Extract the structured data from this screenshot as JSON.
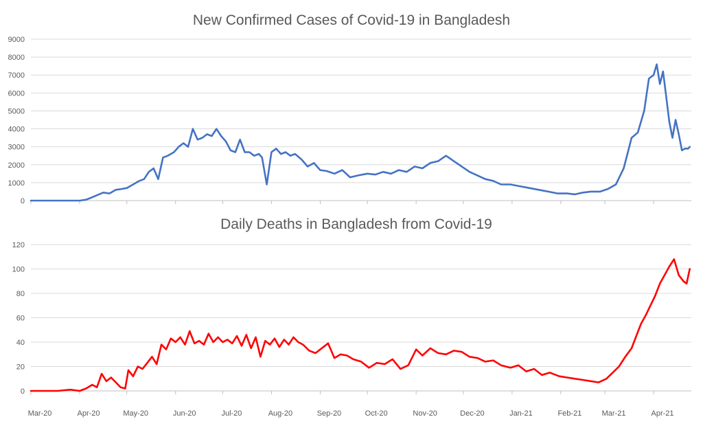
{
  "chart_data": [
    {
      "type": "line",
      "title": "New Confirmed Cases of Covid-19 in Bangladesh",
      "xlabel": "",
      "ylabel": "",
      "ylim": [
        0,
        9000
      ],
      "yticks": [
        0,
        1000,
        2000,
        3000,
        4000,
        5000,
        6000,
        7000,
        8000,
        9000
      ],
      "grid": true,
      "color": "#4472c4",
      "series": [
        {
          "x": [
            "2020-03-01",
            "2020-03-24",
            "2020-03-28",
            "2020-04-01",
            "2020-04-05",
            "2020-04-08",
            "2020-04-12",
            "2020-04-16",
            "2020-04-20",
            "2020-04-24",
            "2020-04-28",
            "2020-05-01",
            "2020-05-05",
            "2020-05-09",
            "2020-05-12",
            "2020-05-15",
            "2020-05-18",
            "2020-05-21",
            "2020-05-24",
            "2020-05-27",
            "2020-05-31",
            "2020-06-03",
            "2020-06-06",
            "2020-06-09",
            "2020-06-12",
            "2020-06-15",
            "2020-06-18",
            "2020-06-21",
            "2020-06-24",
            "2020-06-27",
            "2020-06-30",
            "2020-07-03",
            "2020-07-06",
            "2020-07-09",
            "2020-07-12",
            "2020-07-15",
            "2020-07-18",
            "2020-07-21",
            "2020-07-24",
            "2020-07-26",
            "2020-07-29",
            "2020-08-01",
            "2020-08-04",
            "2020-08-07",
            "2020-08-10",
            "2020-08-13",
            "2020-08-16",
            "2020-08-20",
            "2020-08-24",
            "2020-08-28",
            "2020-09-01",
            "2020-09-05",
            "2020-09-10",
            "2020-09-15",
            "2020-09-20",
            "2020-09-25",
            "2020-10-01",
            "2020-10-06",
            "2020-10-11",
            "2020-10-16",
            "2020-10-21",
            "2020-10-26",
            "2020-10-31",
            "2020-11-05",
            "2020-11-10",
            "2020-11-15",
            "2020-11-20",
            "2020-11-25",
            "2020-11-30",
            "2020-12-05",
            "2020-12-10",
            "2020-12-15",
            "2020-12-20",
            "2020-12-25",
            "2020-12-31",
            "2021-01-06",
            "2021-01-12",
            "2021-01-18",
            "2021-01-24",
            "2021-01-30",
            "2021-02-05",
            "2021-02-10",
            "2021-02-15",
            "2021-02-20",
            "2021-02-26",
            "2021-03-03",
            "2021-03-08",
            "2021-03-13",
            "2021-03-18",
            "2021-03-22",
            "2021-03-26",
            "2021-03-29",
            "2021-04-01",
            "2021-04-03",
            "2021-04-05",
            "2021-04-07",
            "2021-04-09",
            "2021-04-11",
            "2021-04-13",
            "2021-04-15",
            "2021-04-17",
            "2021-04-19",
            "2021-04-21",
            "2021-04-23",
            "2021-04-24"
          ],
          "y": [
            0,
            0,
            0,
            0,
            50,
            150,
            300,
            450,
            400,
            600,
            650,
            700,
            900,
            1100,
            1200,
            1600,
            1800,
            1200,
            2400,
            2500,
            2700,
            3000,
            3200,
            3000,
            4000,
            3400,
            3500,
            3700,
            3600,
            4000,
            3600,
            3300,
            2800,
            2700,
            3400,
            2700,
            2700,
            2500,
            2600,
            2400,
            900,
            2700,
            2900,
            2600,
            2700,
            2500,
            2600,
            2300,
            1900,
            2100,
            1700,
            1650,
            1500,
            1700,
            1300,
            1400,
            1500,
            1450,
            1600,
            1500,
            1700,
            1600,
            1900,
            1800,
            2100,
            2200,
            2500,
            2200,
            1900,
            1600,
            1400,
            1200,
            1100,
            900,
            900,
            800,
            700,
            600,
            500,
            400,
            400,
            350,
            450,
            500,
            500,
            650,
            900,
            1800,
            3500,
            3800,
            5000,
            6800,
            7000,
            7600,
            6500,
            7200,
            5800,
            4400,
            3500,
            4500,
            3700,
            2800,
            2900,
            2900,
            3000
          ]
        }
      ]
    },
    {
      "type": "line",
      "title": "Daily Deaths in Bangladesh from Covid-19",
      "xlabel": "",
      "ylabel": "",
      "ylim": [
        0,
        120
      ],
      "yticks": [
        0,
        20,
        40,
        60,
        80,
        100,
        120
      ],
      "grid": true,
      "color": "#ff0000",
      "x_tick_labels": [
        "Mar-20",
        "Apr-20",
        "May-20",
        "Jun-20",
        "Jul-20",
        "Aug-20",
        "Sep-20",
        "Oct-20",
        "Nov-20",
        "Dec-20",
        "Jan-21",
        "Feb-21",
        "Mar-21",
        "Apr-21"
      ],
      "series": [
        {
          "x": [
            "2020-03-01",
            "2020-03-18",
            "2020-03-26",
            "2020-04-01",
            "2020-04-05",
            "2020-04-09",
            "2020-04-12",
            "2020-04-15",
            "2020-04-18",
            "2020-04-21",
            "2020-04-24",
            "2020-04-27",
            "2020-04-30",
            "2020-05-02",
            "2020-05-05",
            "2020-05-08",
            "2020-05-11",
            "2020-05-14",
            "2020-05-17",
            "2020-05-20",
            "2020-05-23",
            "2020-05-26",
            "2020-05-29",
            "2020-06-01",
            "2020-06-04",
            "2020-06-07",
            "2020-06-10",
            "2020-06-13",
            "2020-06-16",
            "2020-06-19",
            "2020-06-22",
            "2020-06-25",
            "2020-06-28",
            "2020-07-01",
            "2020-07-04",
            "2020-07-07",
            "2020-07-10",
            "2020-07-13",
            "2020-07-16",
            "2020-07-19",
            "2020-07-22",
            "2020-07-25",
            "2020-07-28",
            "2020-07-31",
            "2020-08-03",
            "2020-08-06",
            "2020-08-09",
            "2020-08-12",
            "2020-08-15",
            "2020-08-18",
            "2020-08-21",
            "2020-08-25",
            "2020-08-29",
            "2020-09-02",
            "2020-09-06",
            "2020-09-10",
            "2020-09-14",
            "2020-09-18",
            "2020-09-22",
            "2020-09-27",
            "2020-10-02",
            "2020-10-07",
            "2020-10-12",
            "2020-10-17",
            "2020-10-22",
            "2020-10-27",
            "2020-11-01",
            "2020-11-05",
            "2020-11-10",
            "2020-11-15",
            "2020-11-20",
            "2020-11-25",
            "2020-11-30",
            "2020-12-05",
            "2020-12-10",
            "2020-12-15",
            "2020-12-20",
            "2020-12-25",
            "2020-12-31",
            "2021-01-05",
            "2021-01-10",
            "2021-01-15",
            "2021-01-20",
            "2021-01-25",
            "2021-01-31",
            "2021-02-05",
            "2021-02-10",
            "2021-02-15",
            "2021-02-20",
            "2021-02-25",
            "2021-03-02",
            "2021-03-06",
            "2021-03-10",
            "2021-03-14",
            "2021-03-18",
            "2021-03-21",
            "2021-03-24",
            "2021-03-27",
            "2021-03-30",
            "2021-04-02",
            "2021-04-05",
            "2021-04-08",
            "2021-04-11",
            "2021-04-14",
            "2021-04-17",
            "2021-04-20",
            "2021-04-22",
            "2021-04-24"
          ],
          "y": [
            0,
            0,
            1,
            0,
            2,
            5,
            3,
            14,
            8,
            11,
            7,
            3,
            2,
            17,
            12,
            20,
            18,
            23,
            28,
            22,
            38,
            34,
            43,
            40,
            44,
            38,
            49,
            39,
            41,
            38,
            47,
            40,
            44,
            40,
            42,
            39,
            45,
            37,
            46,
            35,
            44,
            28,
            41,
            38,
            43,
            36,
            42,
            38,
            44,
            40,
            38,
            33,
            31,
            35,
            39,
            27,
            30,
            29,
            26,
            24,
            19,
            23,
            22,
            26,
            18,
            21,
            34,
            29,
            35,
            31,
            30,
            33,
            32,
            28,
            27,
            24,
            25,
            21,
            19,
            21,
            16,
            18,
            13,
            15,
            12,
            11,
            10,
            9,
            8,
            7,
            10,
            15,
            20,
            28,
            35,
            45,
            55,
            62,
            70,
            78,
            88,
            95,
            102,
            108,
            95,
            90,
            88,
            100
          ]
        }
      ]
    }
  ]
}
